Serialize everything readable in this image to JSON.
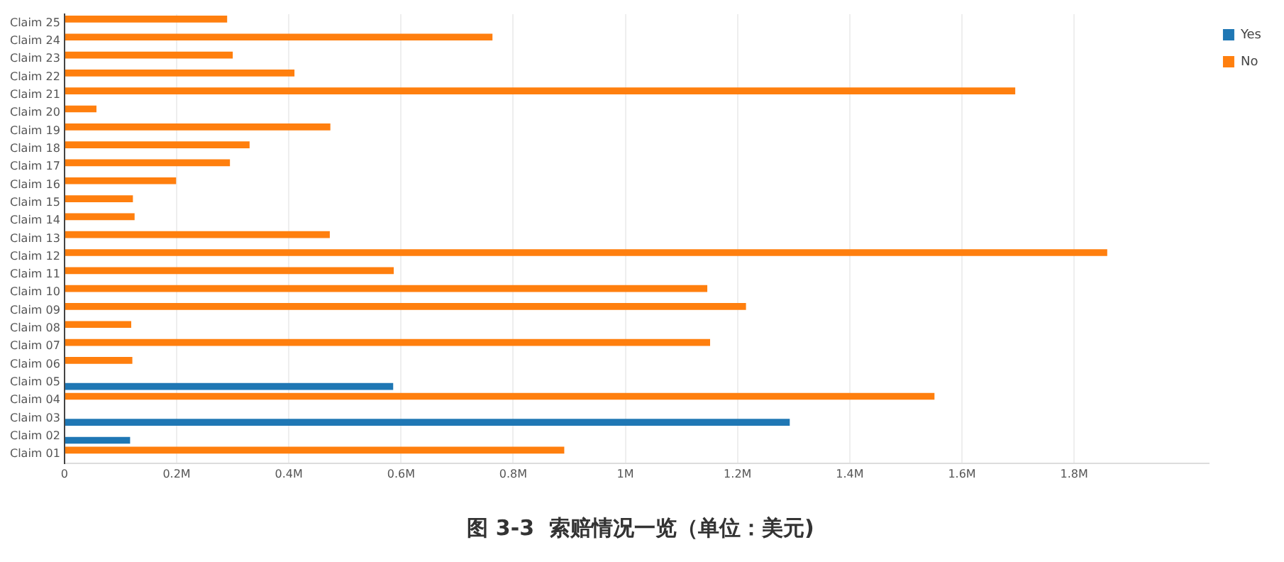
{
  "chart_data": {
    "type": "bar",
    "orientation": "horizontal",
    "title": "图 3-3  索赔情况一览（单位：美元)",
    "categories": [
      "Claim 25",
      "Claim 24",
      "Claim 23",
      "Claim 22",
      "Claim 21",
      "Claim 20",
      "Claim 19",
      "Claim 18",
      "Claim 17",
      "Claim 16",
      "Claim 15",
      "Claim 14",
      "Claim 13",
      "Claim 12",
      "Claim 11",
      "Claim 10",
      "Claim 09",
      "Claim 08",
      "Claim 07",
      "Claim 06",
      "Claim 05",
      "Claim 04",
      "Claim 03",
      "Claim 02",
      "Claim 01"
    ],
    "series": [
      {
        "name": "Yes",
        "color": "#1f77b4",
        "values": [
          null,
          null,
          null,
          null,
          null,
          null,
          null,
          null,
          null,
          null,
          null,
          null,
          null,
          null,
          null,
          null,
          null,
          null,
          null,
          null,
          586000,
          null,
          1293000,
          117000,
          null
        ]
      },
      {
        "name": "No",
        "color": "#ff7f0e",
        "values": [
          290000,
          763000,
          300000,
          410000,
          1695000,
          57000,
          474000,
          330000,
          295000,
          199000,
          122000,
          125000,
          473000,
          1859000,
          587000,
          1146000,
          1215000,
          119000,
          1151000,
          121000,
          null,
          1551000,
          null,
          null,
          891000
        ]
      }
    ],
    "xlim": [
      0,
      2040000
    ],
    "xticks": [
      0,
      {
        "value": 200000,
        "label": "0.2M"
      },
      {
        "value": 400000,
        "label": "0.4M"
      },
      {
        "value": 600000,
        "label": "0.6M"
      },
      {
        "value": 800000,
        "label": "0.8M"
      },
      {
        "value": 1000000,
        "label": "1M"
      },
      {
        "value": 1200000,
        "label": "1.2M"
      },
      {
        "value": 1400000,
        "label": "1.4M"
      },
      {
        "value": 1600000,
        "label": "1.6M"
      },
      {
        "value": 1800000,
        "label": "1.8M"
      }
    ],
    "grid": "x",
    "legend": "top right"
  }
}
